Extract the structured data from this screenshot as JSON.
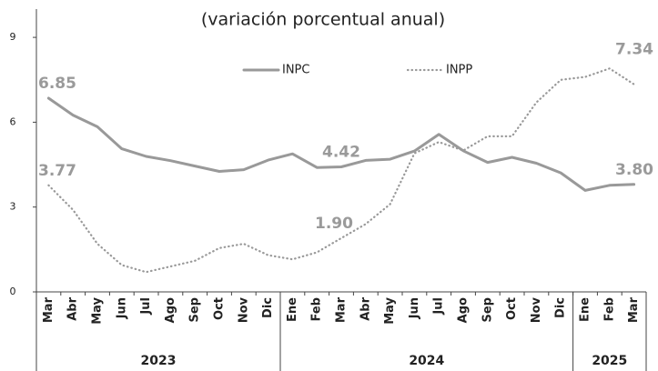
{
  "chart_data": {
    "type": "line",
    "title": "(variación porcentual anual)",
    "category_groups": [
      {
        "label": "2023",
        "categories": [
          "Mar",
          "Abr",
          "May",
          "Jun",
          "Jul",
          "Ago",
          "Sep",
          "Oct",
          "Nov",
          "Dic"
        ]
      },
      {
        "label": "2024",
        "categories": [
          "Ene",
          "Feb",
          "Mar",
          "Abr",
          "May",
          "Jun",
          "Jul",
          "Ago",
          "Sep",
          "Oct",
          "Nov",
          "Dic"
        ]
      },
      {
        "label": "2025",
        "categories": [
          "Ene",
          "Feb",
          "Mar"
        ]
      }
    ],
    "series": [
      {
        "name": "INPC",
        "color": "#999999",
        "style": "solid",
        "values": [
          6.85,
          6.25,
          5.84,
          5.06,
          4.79,
          4.64,
          4.45,
          4.26,
          4.32,
          4.66,
          4.88,
          4.4,
          4.42,
          4.65,
          4.69,
          4.98,
          5.57,
          4.99,
          4.58,
          4.76,
          4.55,
          4.21,
          3.59,
          3.77,
          3.8
        ],
        "value_labels": [
          "6.85",
          null,
          null,
          null,
          null,
          null,
          null,
          null,
          null,
          null,
          null,
          null,
          "4.42",
          null,
          null,
          null,
          null,
          null,
          null,
          null,
          null,
          null,
          null,
          null,
          "3.80"
        ]
      },
      {
        "name": "INPP",
        "color": "#999999",
        "style": "dotted",
        "values": [
          3.77,
          2.9,
          1.7,
          0.95,
          0.7,
          0.9,
          1.1,
          1.55,
          1.7,
          1.3,
          1.15,
          1.4,
          1.9,
          2.4,
          3.1,
          4.9,
          5.3,
          5.0,
          5.5,
          5.5,
          6.7,
          7.5,
          7.6,
          7.9,
          7.34
        ],
        "value_labels": [
          "3.77",
          null,
          null,
          null,
          null,
          null,
          null,
          null,
          null,
          null,
          null,
          null,
          "1.90",
          null,
          null,
          null,
          null,
          null,
          null,
          null,
          null,
          null,
          null,
          null,
          "7.34"
        ]
      }
    ],
    "ylim": [
      0,
      10
    ],
    "yticks": [
      0,
      3,
      6,
      9
    ]
  }
}
